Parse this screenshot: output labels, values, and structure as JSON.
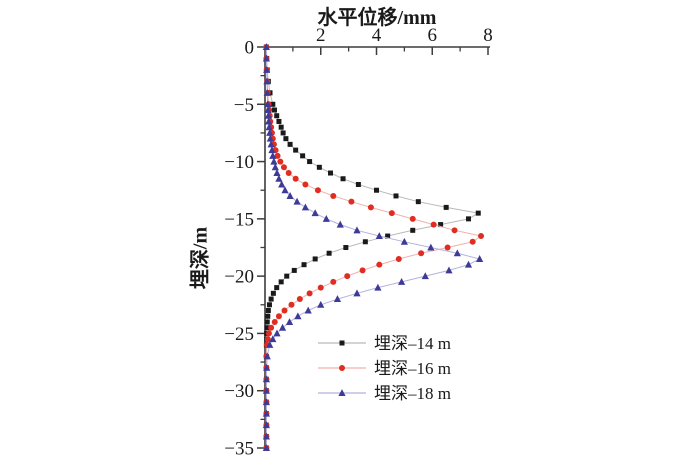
{
  "figure_background": "#ffffff",
  "axis_color": "#3c3c3c",
  "tick_label_color": "#1a1a1a",
  "chart_data": {
    "type": "scatter",
    "title": "水平位移/mm",
    "xlabel": "水平位移/mm",
    "ylabel": "埋深/m",
    "xlim": [
      0,
      8
    ],
    "ylim": [
      -35,
      0
    ],
    "grid": false,
    "legend_position": "inside-bottom-center",
    "x_major_ticks": [
      2,
      4,
      6,
      8
    ],
    "x_major_tick_labels": [
      "2",
      "4",
      "6",
      "8"
    ],
    "x_minor_ticks": [
      1,
      3,
      5,
      7
    ],
    "y_major_ticks": [
      0,
      -5,
      -10,
      -15,
      -20,
      -25,
      -30,
      -35
    ],
    "y_major_tick_labels": [
      "0",
      "−5",
      "−10",
      "−15",
      "−20",
      "−25",
      "−30",
      "−35"
    ],
    "y_minor_ticks": [
      -2.5,
      -7.5,
      -12.5,
      -17.5,
      -22.5,
      -27.5,
      -32.5
    ],
    "series": [
      {
        "name": "埋深–14 m",
        "marker": "square",
        "color": "#1a1a1a",
        "line_color": "#b9b9b9",
        "points": [
          [
            0,
            0.05
          ],
          [
            -1,
            0.06
          ],
          [
            -2,
            0.08
          ],
          [
            -3,
            0.12
          ],
          [
            -4,
            0.18
          ],
          [
            -5,
            0.28
          ],
          [
            -5.5,
            0.34
          ],
          [
            -6,
            0.42
          ],
          [
            -6.5,
            0.5
          ],
          [
            -7,
            0.58
          ],
          [
            -7.5,
            0.65
          ],
          [
            -8,
            0.75
          ],
          [
            -8.5,
            0.9
          ],
          [
            -9,
            1.1
          ],
          [
            -9.5,
            1.35
          ],
          [
            -10,
            1.6
          ],
          [
            -10.5,
            1.95
          ],
          [
            -11,
            2.35
          ],
          [
            -11.5,
            2.8
          ],
          [
            -12,
            3.35
          ],
          [
            -12.5,
            4.0
          ],
          [
            -13,
            4.7
          ],
          [
            -13.5,
            5.5
          ],
          [
            -14,
            6.5
          ],
          [
            -14.5,
            7.65
          ],
          [
            -15,
            7.3
          ],
          [
            -15.5,
            6.3
          ],
          [
            -16,
            5.3
          ],
          [
            -16.5,
            4.4
          ],
          [
            -17,
            3.6
          ],
          [
            -17.5,
            2.9
          ],
          [
            -18,
            2.3
          ],
          [
            -18.5,
            1.8
          ],
          [
            -19,
            1.4
          ],
          [
            -19.5,
            1.05
          ],
          [
            -20,
            0.78
          ],
          [
            -20.5,
            0.58
          ],
          [
            -21,
            0.42
          ],
          [
            -21.5,
            0.3
          ],
          [
            -22,
            0.22
          ],
          [
            -22.5,
            0.16
          ],
          [
            -23,
            0.12
          ],
          [
            -23.5,
            0.1
          ],
          [
            -24,
            0.08
          ],
          [
            -24.5,
            0.07
          ],
          [
            -25,
            0.06
          ],
          [
            -25.5,
            0.06
          ],
          [
            -26,
            0.05
          ],
          [
            -27,
            0.05
          ],
          [
            -28,
            0.05
          ],
          [
            -29,
            0.05
          ],
          [
            -30,
            0.05
          ],
          [
            -31,
            0.05
          ],
          [
            -32,
            0.05
          ],
          [
            -33,
            0.05
          ],
          [
            -34,
            0.05
          ],
          [
            -35,
            0.05
          ]
        ]
      },
      {
        "name": "埋深–16 m",
        "marker": "circle",
        "color": "#df2d22",
        "line_color": "#f0b2ae",
        "points": [
          [
            0,
            0.05
          ],
          [
            -1,
            0.05
          ],
          [
            -2,
            0.06
          ],
          [
            -3,
            0.08
          ],
          [
            -4,
            0.1
          ],
          [
            -5,
            0.13
          ],
          [
            -5.5,
            0.15
          ],
          [
            -6,
            0.17
          ],
          [
            -6.5,
            0.19
          ],
          [
            -7,
            0.22
          ],
          [
            -7.5,
            0.25
          ],
          [
            -8,
            0.28
          ],
          [
            -8.5,
            0.32
          ],
          [
            -9,
            0.38
          ],
          [
            -9.5,
            0.45
          ],
          [
            -10,
            0.55
          ],
          [
            -10.5,
            0.68
          ],
          [
            -11,
            0.85
          ],
          [
            -11.5,
            1.1
          ],
          [
            -12,
            1.45
          ],
          [
            -12.5,
            1.9
          ],
          [
            -13,
            2.45
          ],
          [
            -13.5,
            3.1
          ],
          [
            -14,
            3.8
          ],
          [
            -14.5,
            4.55
          ],
          [
            -15,
            5.3
          ],
          [
            -15.5,
            6.05
          ],
          [
            -16,
            6.8
          ],
          [
            -16.5,
            7.75
          ],
          [
            -17,
            7.45
          ],
          [
            -17.5,
            6.55
          ],
          [
            -18,
            5.6
          ],
          [
            -18.5,
            4.8
          ],
          [
            -19,
            4.1
          ],
          [
            -19.5,
            3.5
          ],
          [
            -20,
            2.95
          ],
          [
            -20.5,
            2.45
          ],
          [
            -21,
            2.0
          ],
          [
            -21.5,
            1.6
          ],
          [
            -22,
            1.25
          ],
          [
            -22.5,
            0.95
          ],
          [
            -23,
            0.7
          ],
          [
            -23.5,
            0.5
          ],
          [
            -24,
            0.35
          ],
          [
            -24.5,
            0.22
          ],
          [
            -25,
            0.14
          ],
          [
            -25.5,
            0.1
          ],
          [
            -26,
            0.07
          ],
          [
            -27,
            0.05
          ],
          [
            -28,
            0.05
          ],
          [
            -29,
            0.05
          ],
          [
            -30,
            0.05
          ],
          [
            -31,
            0.05
          ],
          [
            -32,
            0.05
          ],
          [
            -33,
            0.05
          ],
          [
            -34,
            0.05
          ],
          [
            -35,
            0.05
          ]
        ]
      },
      {
        "name": "埋深–18 m",
        "marker": "triangle",
        "color": "#3e3b98",
        "line_color": "#b3b2de",
        "points": [
          [
            0,
            0.05
          ],
          [
            -1,
            0.05
          ],
          [
            -2,
            0.06
          ],
          [
            -3,
            0.07
          ],
          [
            -4,
            0.08
          ],
          [
            -5,
            0.1
          ],
          [
            -5.5,
            0.11
          ],
          [
            -6,
            0.12
          ],
          [
            -6.5,
            0.13
          ],
          [
            -7,
            0.15
          ],
          [
            -7.5,
            0.17
          ],
          [
            -8,
            0.19
          ],
          [
            -8.5,
            0.22
          ],
          [
            -9,
            0.25
          ],
          [
            -9.5,
            0.28
          ],
          [
            -10,
            0.32
          ],
          [
            -10.5,
            0.37
          ],
          [
            -11,
            0.43
          ],
          [
            -11.5,
            0.5
          ],
          [
            -12,
            0.6
          ],
          [
            -12.5,
            0.72
          ],
          [
            -13,
            0.9
          ],
          [
            -13.5,
            1.15
          ],
          [
            -14,
            1.45
          ],
          [
            -14.5,
            1.8
          ],
          [
            -15,
            2.2
          ],
          [
            -15.5,
            2.7
          ],
          [
            -16,
            3.3
          ],
          [
            -16.5,
            4.1
          ],
          [
            -17,
            5.0
          ],
          [
            -17.5,
            5.95
          ],
          [
            -18,
            6.9
          ],
          [
            -18.5,
            7.7
          ],
          [
            -19,
            7.3
          ],
          [
            -19.5,
            6.6
          ],
          [
            -20,
            5.75
          ],
          [
            -20.5,
            4.9
          ],
          [
            -21,
            4.05
          ],
          [
            -21.5,
            3.3
          ],
          [
            -22,
            2.6
          ],
          [
            -22.5,
            2.0
          ],
          [
            -23,
            1.55
          ],
          [
            -23.5,
            1.18
          ],
          [
            -24,
            0.88
          ],
          [
            -24.5,
            0.63
          ],
          [
            -25,
            0.43
          ],
          [
            -25.5,
            0.28
          ],
          [
            -26,
            0.17
          ],
          [
            -27,
            0.08
          ],
          [
            -28,
            0.06
          ],
          [
            -29,
            0.05
          ],
          [
            -30,
            0.05
          ],
          [
            -31,
            0.05
          ],
          [
            -32,
            0.05
          ],
          [
            -33,
            0.05
          ],
          [
            -34,
            0.05
          ],
          [
            -35,
            0.05
          ]
        ]
      }
    ]
  },
  "legend": {
    "items": [
      {
        "label": "埋深–14 m"
      },
      {
        "label": "埋深–16 m"
      },
      {
        "label": "埋深–18 m"
      }
    ]
  }
}
